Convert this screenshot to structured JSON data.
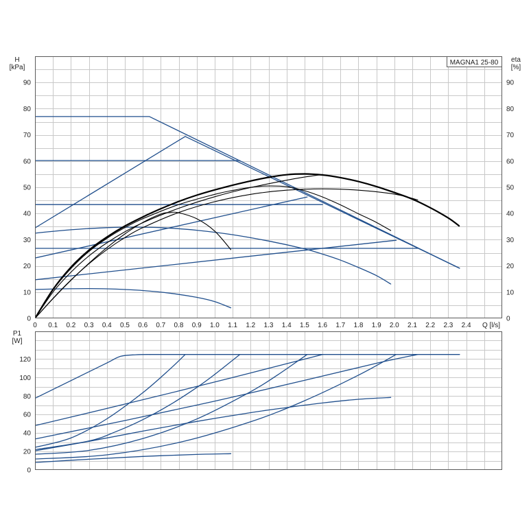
{
  "chart_data": [
    {
      "type": "line",
      "model_label": "MAGNA1 25-80",
      "ylabel": "H",
      "yunit": "[kPa]",
      "y2label": "eta",
      "y2unit": "[%]",
      "xlabel": "Q [l/s]",
      "xlim": [
        0,
        2.6
      ],
      "ylim": [
        0,
        100
      ],
      "y2lim": [
        0,
        100
      ],
      "xticks": [
        "0",
        "0.1",
        "0.2",
        "0.3",
        "0.4",
        "0.5",
        "0.6",
        "0.7",
        "0.8",
        "0.9",
        "1.0",
        "1.1",
        "1.2",
        "1.3",
        "1.4",
        "1.5",
        "1.6",
        "1.7",
        "1.8",
        "1.9",
        "2.0",
        "2.1",
        "2.2",
        "2.3",
        "2.4"
      ],
      "yticks": [
        "0",
        "10",
        "20",
        "30",
        "40",
        "50",
        "60",
        "70",
        "80",
        "90"
      ],
      "y2ticks": [
        "0",
        "10",
        "20",
        "30",
        "40",
        "50",
        "60",
        "70",
        "80",
        "90"
      ],
      "grid": true,
      "colors": {
        "h": "#1f4e8c",
        "eta": "#000000"
      },
      "h_series": [
        [
          [
            0,
            77
          ],
          [
            0.637,
            77
          ],
          [
            2.363,
            19.1
          ]
        ],
        [
          [
            0,
            34.5
          ],
          [
            0.836,
            69.4
          ],
          [
            2.363,
            19.1
          ]
        ],
        [
          [
            0,
            60.2
          ],
          [
            1.14,
            60.2
          ]
        ],
        [
          [
            0,
            43.4
          ],
          [
            1.6,
            43.4
          ]
        ],
        [
          [
            0,
            26.7
          ],
          [
            2.13,
            26.7
          ]
        ],
        [
          [
            0,
            23
          ],
          [
            1.515,
            46.3
          ]
        ],
        [
          [
            0,
            14.7
          ],
          [
            2.01,
            29.8
          ]
        ],
        [
          [
            0,
            32.5
          ],
          [
            0.2,
            33.8
          ],
          [
            0.4,
            34.6
          ],
          [
            0.55,
            34.8
          ],
          [
            0.7,
            34.6
          ],
          [
            0.9,
            33.6
          ],
          [
            1.1,
            31.9
          ],
          [
            1.3,
            29.5
          ],
          [
            1.5,
            26.5
          ],
          [
            1.6,
            24.5
          ],
          [
            1.7,
            22.2
          ],
          [
            1.8,
            19.4
          ],
          [
            1.9,
            16.3
          ],
          [
            1.98,
            13.1
          ]
        ],
        [
          [
            0,
            11
          ],
          [
            0.15,
            11.25
          ],
          [
            0.3,
            11.35
          ],
          [
            0.45,
            11.15
          ],
          [
            0.6,
            10.6
          ],
          [
            0.75,
            9.6
          ],
          [
            0.9,
            8
          ],
          [
            1.0,
            6.4
          ],
          [
            1.09,
            4
          ]
        ]
      ],
      "eta_series": [
        [
          [
            0,
            0
          ],
          [
            0.1,
            11
          ],
          [
            0.2,
            19.5
          ],
          [
            0.3,
            26
          ],
          [
            0.4,
            31
          ],
          [
            0.5,
            35.2
          ],
          [
            0.6,
            38.7
          ],
          [
            0.7,
            41.8
          ],
          [
            0.8,
            44.6
          ],
          [
            0.9,
            47
          ],
          [
            1.0,
            49
          ],
          [
            1.1,
            50.8
          ],
          [
            1.2,
            52.4
          ],
          [
            1.3,
            53.8
          ],
          [
            1.4,
            54.8
          ],
          [
            1.5,
            55.1
          ],
          [
            1.6,
            54.7
          ],
          [
            1.7,
            53.7
          ],
          [
            1.8,
            52.2
          ],
          [
            1.9,
            50.3
          ],
          [
            2.0,
            48
          ],
          [
            2.1,
            45.5
          ],
          [
            2.2,
            42.2
          ],
          [
            2.3,
            38.3
          ],
          [
            2.36,
            35.3
          ]
        ],
        [
          [
            0,
            0
          ],
          [
            0.1,
            7.6
          ],
          [
            0.2,
            14.6
          ],
          [
            0.3,
            20.8
          ],
          [
            0.4,
            26.2
          ],
          [
            0.5,
            30.8
          ],
          [
            0.6,
            34.6
          ],
          [
            0.8,
            40.4
          ],
          [
            1.0,
            44.5
          ],
          [
            1.2,
            47.3
          ],
          [
            1.4,
            48.9
          ],
          [
            1.6,
            49.4
          ],
          [
            1.8,
            48.9
          ],
          [
            2.0,
            47.4
          ],
          [
            2.13,
            45.2
          ]
        ],
        [
          [
            0,
            0
          ],
          [
            0.1,
            10.8
          ],
          [
            0.2,
            19
          ],
          [
            0.3,
            25.5
          ],
          [
            0.4,
            30.5
          ],
          [
            0.5,
            34.6
          ],
          [
            0.6,
            38
          ],
          [
            0.8,
            43.4
          ],
          [
            1.0,
            47.3
          ],
          [
            1.1,
            48.8
          ],
          [
            1.2,
            50
          ],
          [
            1.3,
            50.5
          ],
          [
            1.4,
            50.2
          ],
          [
            1.5,
            48.7
          ],
          [
            1.6,
            46.3
          ],
          [
            1.7,
            43.3
          ],
          [
            1.8,
            39.9
          ],
          [
            1.9,
            36.6
          ],
          [
            1.98,
            33.5
          ]
        ],
        [
          [
            0,
            0
          ],
          [
            0.1,
            10
          ],
          [
            0.2,
            17.6
          ],
          [
            0.3,
            23.8
          ],
          [
            0.4,
            28.8
          ],
          [
            0.5,
            33
          ],
          [
            0.6,
            36.5
          ],
          [
            0.8,
            42
          ],
          [
            1.0,
            46.4
          ],
          [
            1.2,
            49.9
          ],
          [
            1.4,
            52.7
          ],
          [
            1.5,
            53.9
          ],
          [
            1.6,
            54.9
          ]
        ],
        [
          [
            0,
            0
          ],
          [
            0.1,
            7.5
          ],
          [
            0.2,
            14.5
          ],
          [
            0.3,
            21
          ],
          [
            0.4,
            27
          ],
          [
            0.5,
            32.2
          ],
          [
            0.6,
            36.6
          ],
          [
            0.7,
            39.8
          ],
          [
            0.75,
            40.4
          ],
          [
            0.8,
            40.3
          ],
          [
            0.9,
            38
          ],
          [
            1.0,
            33.3
          ],
          [
            1.09,
            26.2
          ]
        ]
      ]
    },
    {
      "type": "line",
      "ylabel": "P1",
      "yunit": "[W]",
      "xlim": [
        0,
        2.6
      ],
      "ylim": [
        0,
        150
      ],
      "yticks": [
        "0",
        "20",
        "40",
        "60",
        "80",
        "100",
        "120"
      ],
      "grid": true,
      "colors": {
        "p1": "#1f4e8c"
      },
      "p1_series": [
        [
          [
            0,
            77.5
          ],
          [
            0.2,
            96.7
          ],
          [
            0.4,
            115.8
          ],
          [
            0.476,
            123
          ],
          [
            0.56,
            124.7
          ],
          [
            0.64,
            125
          ]
        ],
        [
          [
            0.64,
            125
          ],
          [
            2.363,
            125
          ]
        ],
        [
          [
            0,
            48
          ],
          [
            0.4,
            66.5
          ],
          [
            0.8,
            85.5
          ],
          [
            1.2,
            105
          ],
          [
            1.6,
            125
          ]
        ],
        [
          [
            0,
            33.5
          ],
          [
            0.5,
            53.5
          ],
          [
            1.0,
            74.5
          ],
          [
            1.5,
            97
          ],
          [
            1.9,
            115.5
          ],
          [
            2.13,
            125
          ]
        ],
        [
          [
            0,
            24.4
          ],
          [
            0.2,
            34.6
          ],
          [
            0.4,
            55.3
          ],
          [
            0.6,
            83.6
          ],
          [
            0.75,
            108.9
          ],
          [
            0.836,
            125
          ]
        ],
        [
          [
            0,
            22
          ],
          [
            0.3,
            31.3
          ],
          [
            0.45,
            41.4
          ],
          [
            0.6,
            54.4
          ],
          [
            0.75,
            70.4
          ],
          [
            0.9,
            89.2
          ],
          [
            1.0,
            103.4
          ],
          [
            1.14,
            125
          ]
        ],
        [
          [
            0,
            20.7
          ],
          [
            0.3,
            31
          ],
          [
            0.6,
            42
          ],
          [
            0.9,
            52.5
          ],
          [
            1.2,
            62
          ],
          [
            1.4,
            67.5
          ],
          [
            1.6,
            72.5
          ],
          [
            1.8,
            76.5
          ],
          [
            1.98,
            78.5
          ]
        ],
        [
          [
            0,
            17
          ],
          [
            0.3,
            21.2
          ],
          [
            0.6,
            34
          ],
          [
            0.9,
            55.1
          ],
          [
            1.2,
            84.7
          ],
          [
            1.35,
            102.8
          ],
          [
            1.515,
            125
          ]
        ],
        [
          [
            0,
            11.8
          ],
          [
            0.4,
            16.3
          ],
          [
            0.8,
            29.7
          ],
          [
            1.2,
            52.1
          ],
          [
            1.5,
            74.9
          ],
          [
            1.8,
            102.6
          ],
          [
            2.01,
            125
          ]
        ],
        [
          [
            0,
            8.1
          ],
          [
            0.3,
            11.6
          ],
          [
            0.6,
            14.6
          ],
          [
            0.9,
            16.8
          ],
          [
            1.09,
            17.6
          ]
        ]
      ]
    }
  ],
  "colors": {
    "grid": "#c8c8c8",
    "frame": "#5a5a5a",
    "background": "#ffffff"
  }
}
